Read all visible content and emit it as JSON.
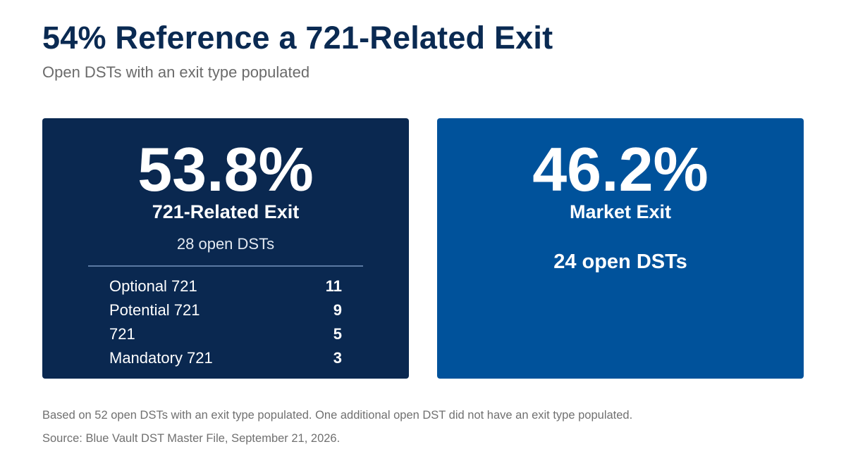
{
  "title": "54% Reference a 721-Related Exit",
  "subtitle": "Open DSTs with an exit type populated",
  "colors": {
    "title": "#0a2a52",
    "left_card": "#0a2850",
    "right_card": "#00529b"
  },
  "chart_data": {
    "type": "table",
    "title": "54% Reference a 721-Related Exit",
    "subtitle": "Open DSTs with an exit type populated",
    "cards": [
      {
        "percent": "53.8%",
        "label": "721-Related Exit",
        "count_text": "28 open DSTs",
        "breakdown": [
          {
            "label": "Optional 721",
            "value": 11
          },
          {
            "label": "Potential 721",
            "value": 9
          },
          {
            "label": "721",
            "value": 5
          },
          {
            "label": "Mandatory 721",
            "value": 3
          }
        ]
      },
      {
        "percent": "46.2%",
        "label": "Market Exit",
        "count_text": "24 open DSTs"
      }
    ]
  },
  "footnotes": {
    "note": "Based on 52 open DSTs with an exit type populated. One additional open DST did not have an exit type populated.",
    "source": "Source: Blue Vault DST Master File, September 21, 2026."
  }
}
